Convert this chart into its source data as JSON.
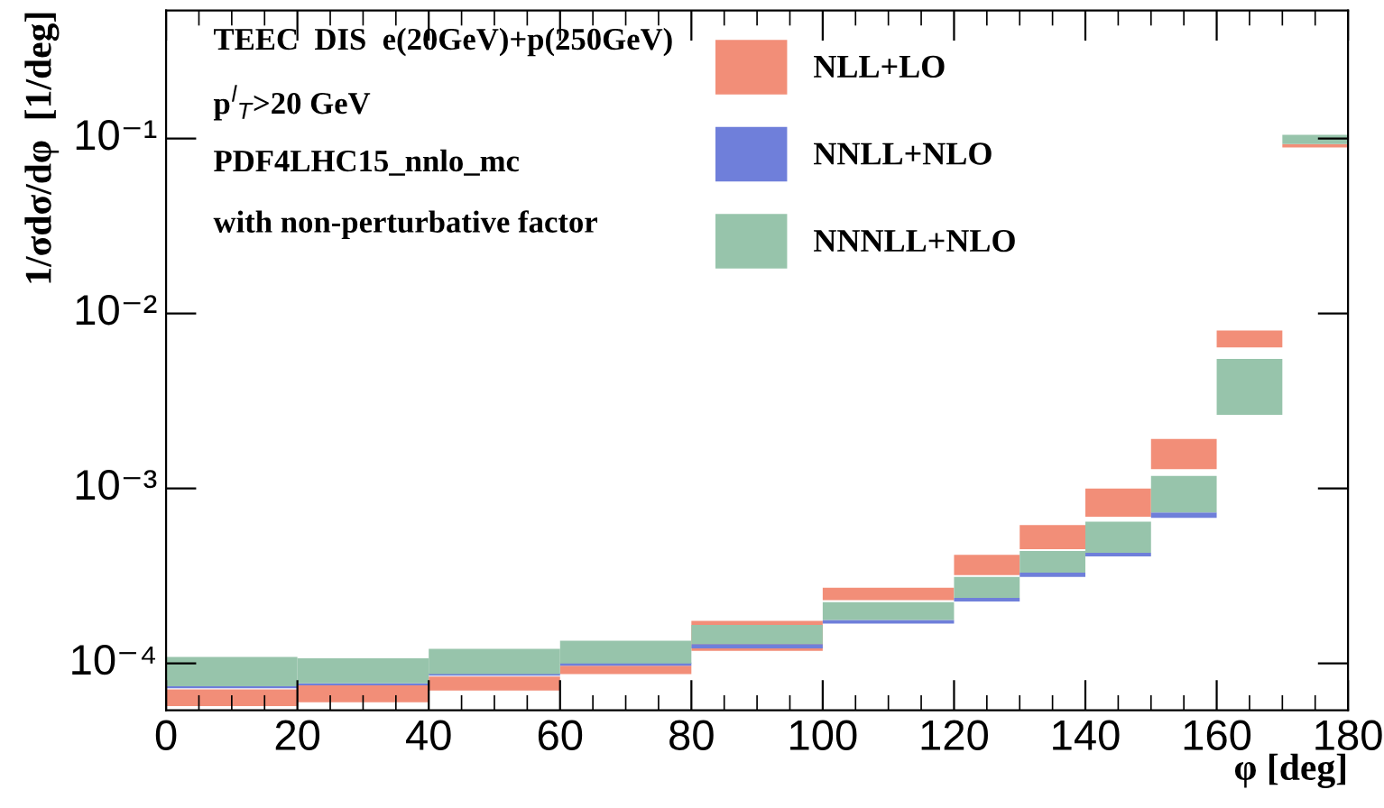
{
  "chart_data": {
    "type": "bar",
    "x": [
      10,
      30,
      50,
      70,
      90,
      110,
      125,
      135,
      145,
      155,
      165,
      175
    ],
    "series": [
      {
        "name": "NLL+LO",
        "color": "#f28e78",
        "base": [
          5.7e-05,
          6e-05,
          7e-05,
          8.7e-05,
          0.000118,
          0.00023,
          0.00032,
          0.00045,
          0.00069,
          0.00129,
          0.0064,
          0.089
        ],
        "values": [
          1.4e-05,
          1.5e-05,
          1.4e-05,
          1e-05,
          5.7e-05,
          4.1e-05,
          9.8e-05,
          0.000167,
          0.00031,
          0.00063,
          0.0016,
          0.004
        ]
      },
      {
        "name": "NNLL+NLO",
        "color": "#6f7fda",
        "base": [
          7.2e-05,
          7.5e-05,
          8.5e-05,
          9.7e-05,
          0.000122,
          0.000169,
          0.000226,
          0.000312,
          0.000409,
          0.00068,
          null,
          null
        ],
        "values": [
          2e-06,
          2e-06,
          3e-06,
          4e-06,
          7e-06,
          8e-06,
          1.1e-05,
          1.8e-05,
          2e-05,
          5e-05,
          null,
          null
        ]
      },
      {
        "name": "NNNLL+NLO",
        "color": "#97c4ab",
        "base": [
          7.4e-05,
          7.7e-05,
          8.7e-05,
          0.0001,
          0.000129,
          0.000177,
          0.000237,
          0.00033,
          0.000429,
          0.00073,
          0.00264,
          0.093
        ],
        "values": [
          3.5e-05,
          3e-05,
          3.4e-05,
          3.5e-05,
          3.7e-05,
          4.7e-05,
          7.5e-05,
          0.000109,
          0.000217,
          0.00045,
          0.00286,
          0.012
        ]
      }
    ],
    "xlim": [
      0,
      180
    ],
    "xticks": [
      0,
      20,
      40,
      60,
      80,
      100,
      120,
      140,
      160,
      180
    ],
    "ylim": [
      5.4e-05,
      0.54
    ],
    "log": "y",
    "yticks": [
      {
        "value": 0.0001,
        "label": "10⁻⁴"
      },
      {
        "value": 0.001,
        "label": "10⁻³"
      },
      {
        "value": 0.01,
        "label": "10⁻²"
      },
      {
        "value": 0.1,
        "label": "10⁻¹"
      }
    ],
    "xlabel": "φ [deg]",
    "ylabel": "1/σdσ/dφ  [1/deg]",
    "annotations": [
      "TEEC  DIS  e(20GeV)+p(250GeV)",
      "p$^{l}$$_{T}$>20 GeV",
      "PDF4LHC15_nnlo_mc",
      "with non-perturbative factor"
    ],
    "legend": "top",
    "grid": false
  }
}
